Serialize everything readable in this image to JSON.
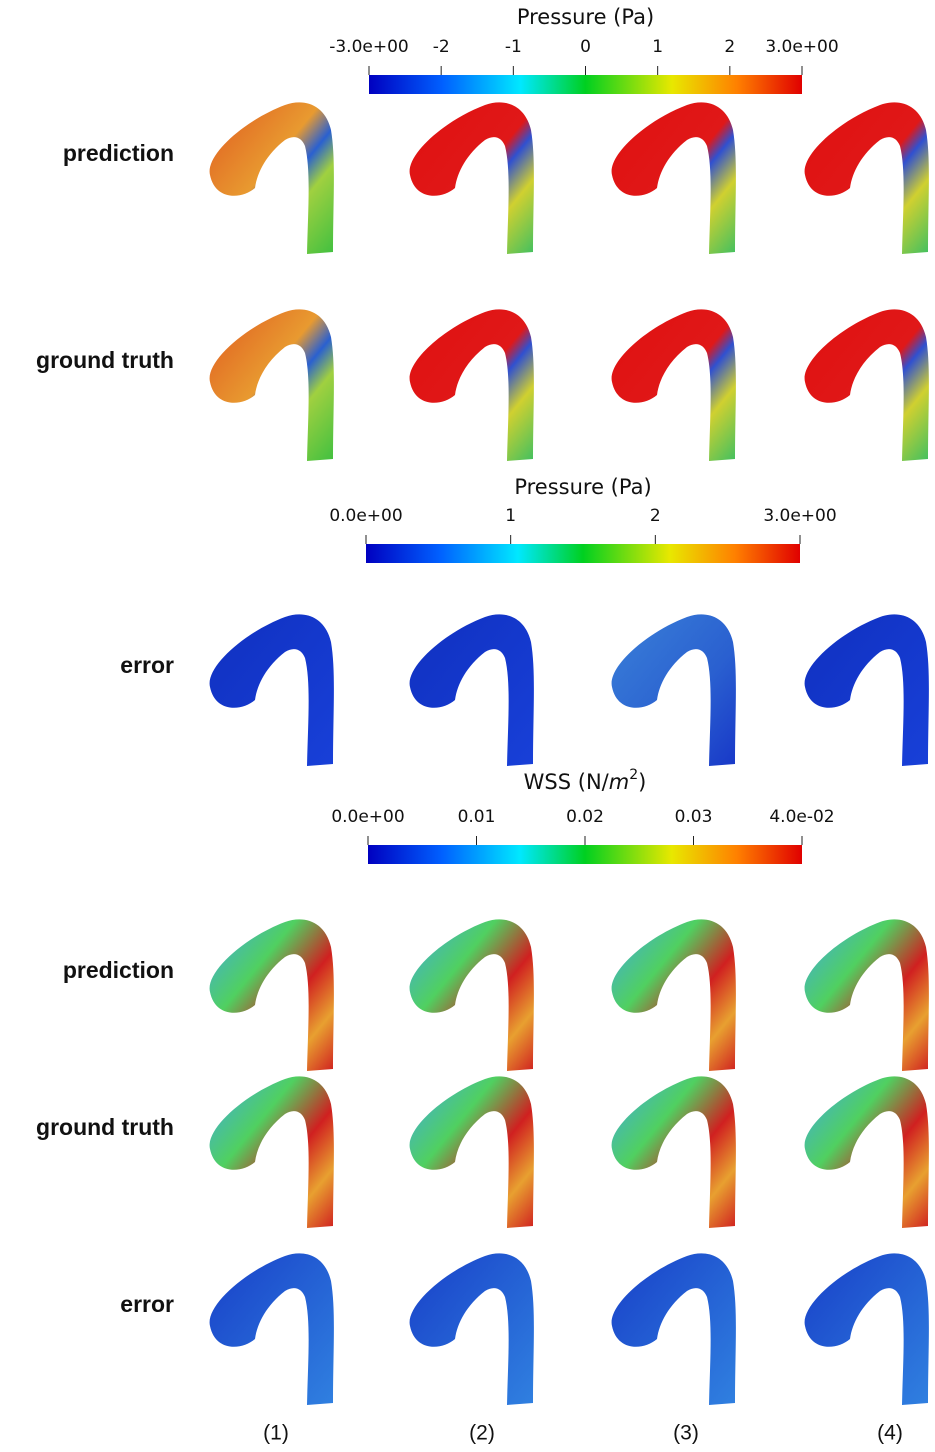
{
  "colorbars": [
    {
      "title": "Pressure (Pa)",
      "lim": [
        -3,
        3
      ],
      "ticks": [
        {
          "value": -3,
          "label": "-3.0e+00"
        },
        -2,
        -1,
        0,
        1,
        2,
        {
          "value": 3,
          "label": "3.0e+00"
        }
      ]
    },
    {
      "title": "Pressure (Pa)",
      "lim": [
        0,
        3
      ],
      "ticks": [
        {
          "value": 0,
          "label": "0.0e+00"
        },
        1,
        2,
        {
          "value": 3,
          "label": "3.0e+00"
        }
      ]
    },
    {
      "title_parts": [
        "WSS (N/",
        "m",
        "2",
        ")"
      ],
      "lim": [
        0,
        0.04
      ],
      "ticks": [
        {
          "value": 0,
          "label": "0.0e+00"
        },
        0.01,
        0.02,
        0.03,
        {
          "value": 0.04,
          "label": "4.0e-02"
        }
      ]
    }
  ],
  "sections": [
    {
      "rows": [
        "prediction",
        "ground truth"
      ]
    },
    {
      "rows": [
        "error"
      ]
    },
    {
      "rows": [
        "prediction",
        "ground truth",
        "error"
      ]
    }
  ],
  "columns": [
    "(1)",
    "(2)",
    "(3)",
    "(4)"
  ]
}
